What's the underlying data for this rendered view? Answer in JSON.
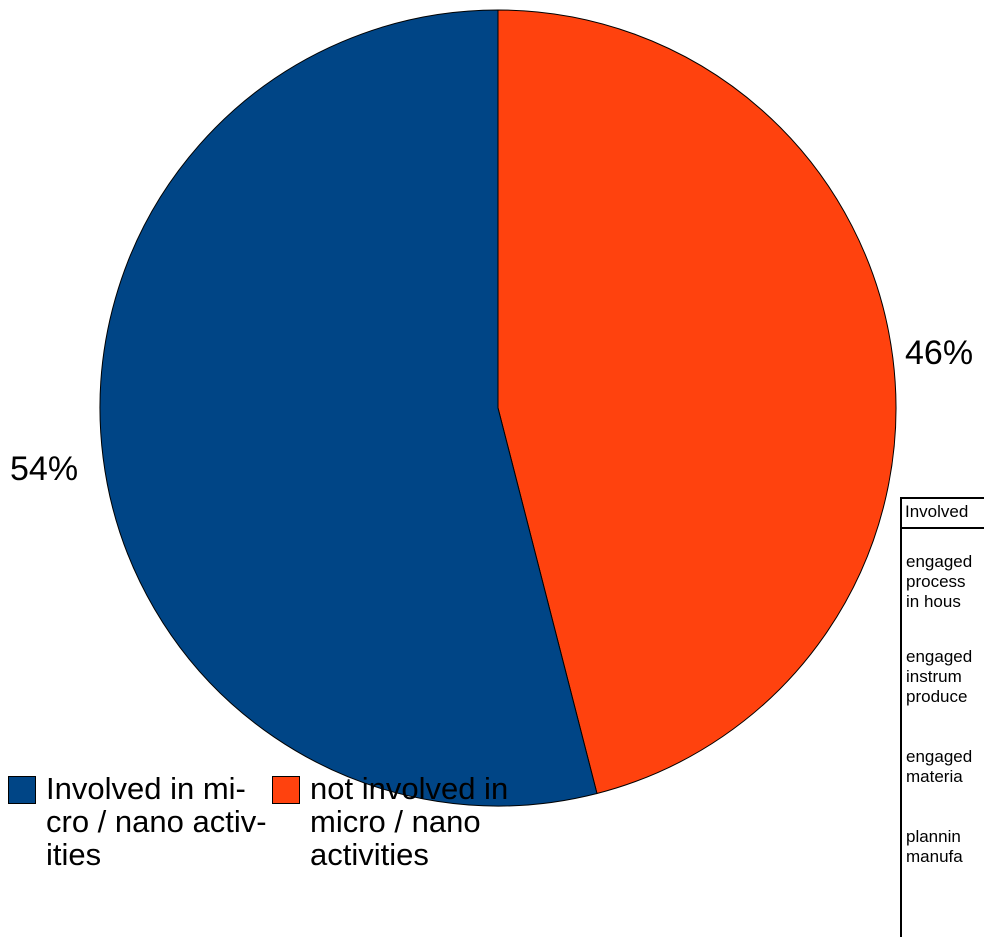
{
  "chart_data": {
    "type": "pie",
    "start_angle_deg": 0,
    "direction": "clockwise",
    "slices": [
      {
        "label": "not involved in micro / nano activities",
        "value": 46,
        "display": "46%",
        "color": "#ff420e"
      },
      {
        "label": "Involved in micro / nano activities",
        "value": 54,
        "display": "54%",
        "color": "#004586"
      }
    ],
    "legend": [
      {
        "text": "Involved in mi- cro / nano activ- ities",
        "color": "#004586"
      },
      {
        "text": "not involved in micro / nano activities",
        "color": "#ff420e"
      }
    ],
    "legend_position": "bottom-left"
  },
  "side_table": {
    "header": "Involved",
    "rows": [
      {
        "text": "engaged\nprocess\nin hous"
      },
      {
        "text": "engaged\ninstrum\nproduce"
      },
      {
        "text": "engaged\nmateria"
      },
      {
        "text": "plannin\nmanufa"
      }
    ]
  }
}
